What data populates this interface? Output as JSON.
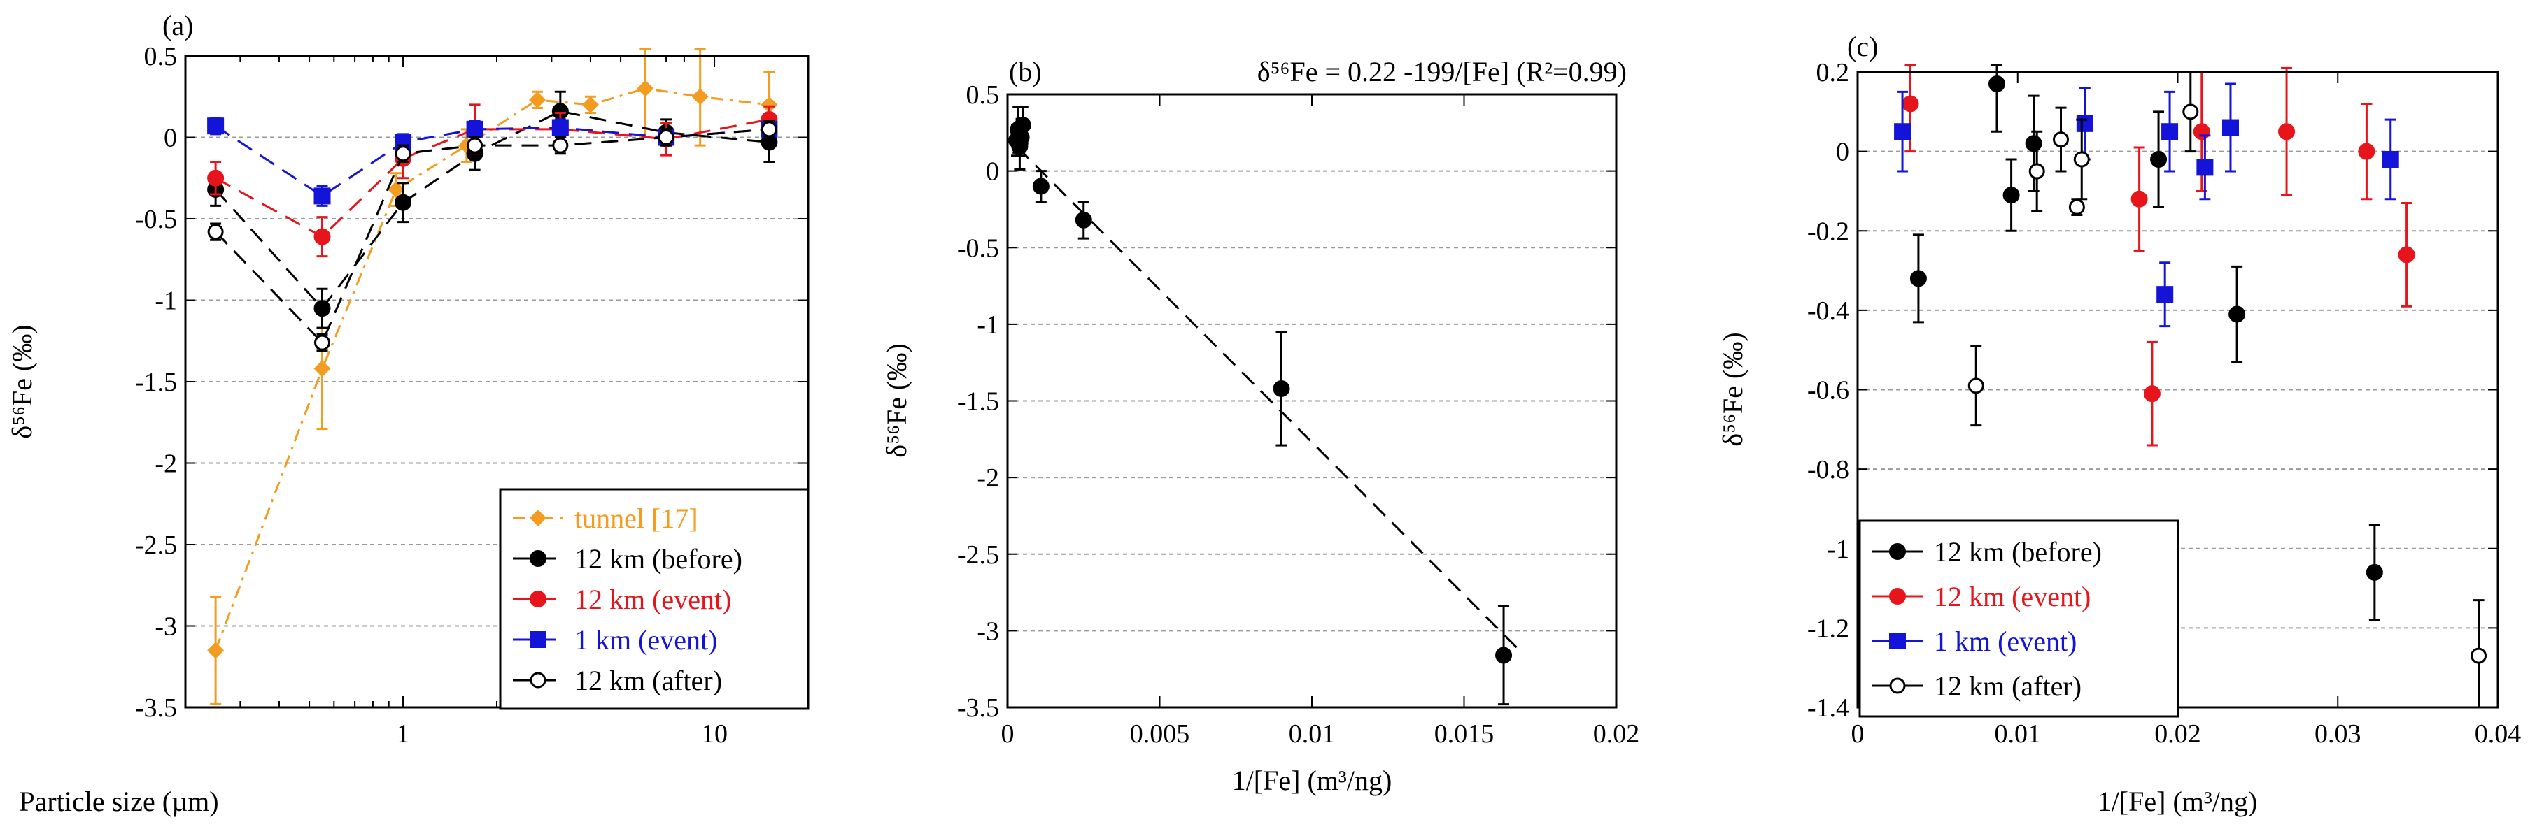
{
  "chart_data": [
    {
      "type": "line",
      "panel_label": "(a)",
      "xscale": "log",
      "xlim": [
        0.2,
        20
      ],
      "ylim": [
        -3.5,
        0.5
      ],
      "xlabel": "Particle size (µm)",
      "ylabel": "δ⁵⁶Fe (‰)",
      "x_ticks": [
        1,
        10
      ],
      "x_tick_labels": [
        "1",
        "10"
      ],
      "y_ticks": [
        0.5,
        0,
        -0.5,
        -1,
        -1.5,
        -2,
        -2.5,
        -3,
        -3.5
      ],
      "y_tick_labels": [
        "0.5",
        "0",
        "-0.5",
        "-1",
        "-1.5",
        "-2",
        "-2.5",
        "-3",
        "-3.5"
      ],
      "legend_position": "bottom-right",
      "series": [
        {
          "name": "tunnel [17]",
          "color": "#F39C1F",
          "marker": "diamond",
          "dash": "dashdot",
          "x": [
            0.25,
            0.55,
            0.95,
            1.6,
            2.7,
            4.0,
            6.0,
            9.0,
            15.0
          ],
          "y": [
            -3.15,
            -1.42,
            -0.32,
            -0.05,
            0.23,
            0.2,
            0.3,
            0.25,
            0.2
          ],
          "err": [
            0.33,
            0.37,
            0.1,
            0.1,
            0.05,
            0.05,
            0.3,
            0.3,
            0.2
          ]
        },
        {
          "name": "12 km (before)",
          "color": "#000000",
          "marker": "circle",
          "dash": "dashed",
          "x": [
            0.25,
            0.55,
            1.0,
            1.7,
            3.2,
            7.0,
            15.0
          ],
          "y": [
            -0.32,
            -1.05,
            -0.4,
            -0.1,
            0.16,
            0.03,
            -0.03
          ],
          "err": [
            0.1,
            0.12,
            0.12,
            0.1,
            0.12,
            0.08,
            0.12
          ]
        },
        {
          "name": "12 km (event)",
          "color": "#E8141B",
          "marker": "circle",
          "dash": "dashed",
          "x": [
            0.25,
            0.55,
            1.0,
            1.7,
            3.2,
            7.0,
            15.0
          ],
          "y": [
            -0.25,
            -0.61,
            -0.13,
            0.05,
            0.05,
            -0.01,
            0.11
          ],
          "err": [
            0.1,
            0.12,
            0.12,
            0.15,
            0.1,
            0.1,
            0.08
          ]
        },
        {
          "name": "1 km (event)",
          "color": "#1414D8",
          "marker": "square",
          "dash": "dashed",
          "x": [
            0.25,
            0.55,
            1.0,
            1.7,
            3.2,
            7.0,
            15.0
          ],
          "y": [
            0.07,
            -0.36,
            -0.03,
            0.05,
            0.06,
            0.0,
            0.05
          ],
          "err": [
            0.05,
            0.06,
            0.05,
            0.05,
            0.05,
            0.05,
            0.05
          ]
        },
        {
          "name": "12 km (after)",
          "color": "#000000",
          "marker": "open-circle",
          "dash": "dashed",
          "x": [
            0.25,
            0.55,
            1.0,
            1.7,
            3.2,
            7.0,
            15.0
          ],
          "y": [
            -0.58,
            -1.26,
            -0.1,
            -0.05,
            -0.05,
            0.0,
            0.05
          ],
          "err": [
            0.05,
            0.05,
            0.05,
            0.05,
            0.05,
            0.05,
            0.05
          ]
        }
      ]
    },
    {
      "type": "scatter",
      "panel_label": "(b)",
      "title": "δ⁵⁶Fe = 0.22 -199/[Fe] (R²=0.99)",
      "xlim": [
        0,
        0.02
      ],
      "ylim": [
        -3.5,
        0.5
      ],
      "xlabel": "1/[Fe] (m³/ng)",
      "ylabel": "δ⁵⁶Fe (‰)",
      "x_ticks": [
        0,
        0.005,
        0.01,
        0.015,
        0.02
      ],
      "x_tick_labels": [
        "0",
        "0.005",
        "0.01",
        "0.015",
        "0.02"
      ],
      "y_ticks": [
        0.5,
        0,
        -0.5,
        -1,
        -1.5,
        -2,
        -2.5,
        -3,
        -3.5
      ],
      "y_tick_labels": [
        "0.5",
        "0",
        "-0.5",
        "-1",
        "-1.5",
        "-2",
        "-2.5",
        "-3",
        "-3.5"
      ],
      "fit": {
        "intercept": 0.22,
        "slope": -199,
        "x_range": [
          0.0003,
          0.0169
        ]
      },
      "series": [
        {
          "name": "data",
          "color": "#000000",
          "marker": "circle",
          "x": [
            0.0003,
            0.00035,
            0.0004,
            0.00045,
            0.0005,
            0.0011,
            0.0025,
            0.009,
            0.0163
          ],
          "y": [
            0.2,
            0.27,
            0.16,
            0.22,
            0.3,
            -0.1,
            -0.32,
            -1.42,
            -3.16
          ],
          "err": [
            0.1,
            0.15,
            0.15,
            0.12,
            0.12,
            0.1,
            0.12,
            0.37,
            0.32
          ]
        }
      ]
    },
    {
      "type": "scatter",
      "panel_label": "(c)",
      "xlim": [
        0,
        0.04
      ],
      "ylim": [
        -1.4,
        0.2
      ],
      "xlabel": "1/[Fe] (m³/ng)",
      "ylabel": "δ⁵⁶Fe (‰)",
      "x_ticks": [
        0,
        0.01,
        0.02,
        0.03,
        0.04
      ],
      "x_tick_labels": [
        "0",
        "0.01",
        "0.02",
        "0.03",
        "0.04"
      ],
      "y_ticks": [
        0.2,
        0,
        -0.2,
        -0.4,
        -0.6,
        -0.8,
        -1,
        -1.2,
        -1.4
      ],
      "y_tick_labels": [
        "0.2",
        "0",
        "-0.2",
        "-0.4",
        "-0.6",
        "-0.8",
        "-1",
        "-1.2",
        "-1.4"
      ],
      "legend_position": "bottom-left",
      "series": [
        {
          "name": "12 km (before)",
          "color": "#000000",
          "marker": "circle",
          "x": [
            0.0038,
            0.0087,
            0.0096,
            0.011,
            0.0188,
            0.0237,
            0.0323
          ],
          "y": [
            -0.32,
            0.17,
            -0.11,
            0.02,
            -0.02,
            -0.41,
            -1.06
          ],
          "err": [
            0.11,
            0.12,
            0.09,
            0.12,
            0.12,
            0.12,
            0.12
          ]
        },
        {
          "name": "12 km (event)",
          "color": "#E8141B",
          "marker": "circle",
          "x": [
            0.0033,
            0.0176,
            0.0184,
            0.0215,
            0.0268,
            0.0318,
            0.0343
          ],
          "y": [
            0.12,
            -0.12,
            -0.61,
            0.05,
            0.05,
            0.0,
            -0.26
          ],
          "err": [
            0.12,
            0.13,
            0.13,
            0.15,
            0.16,
            0.12,
            0.13
          ]
        },
        {
          "name": "1 km (event)",
          "color": "#1414D8",
          "marker": "square",
          "x": [
            0.0028,
            0.0142,
            0.0192,
            0.0195,
            0.0217,
            0.0233,
            0.0333
          ],
          "y": [
            0.05,
            0.07,
            -0.36,
            0.05,
            -0.04,
            0.06,
            -0.02
          ],
          "err": [
            0.1,
            0.09,
            0.08,
            0.1,
            0.08,
            0.11,
            0.1
          ]
        },
        {
          "name": "12 km (after)",
          "color": "#000000",
          "marker": "open-circle",
          "x": [
            0.0074,
            0.0112,
            0.0127,
            0.0137,
            0.014,
            0.0208,
            0.0388
          ],
          "y": [
            -0.59,
            -0.05,
            0.03,
            -0.14,
            -0.02,
            0.1,
            -1.27
          ],
          "err": [
            0.1,
            0.1,
            0.08,
            0.02,
            0.1,
            0.1,
            0.14
          ]
        }
      ]
    }
  ]
}
